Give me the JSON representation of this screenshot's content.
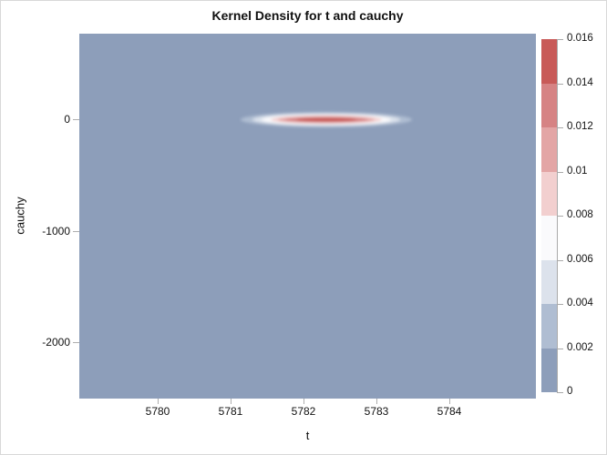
{
  "title": "Kernel Density for t and cauchy",
  "x_axis": {
    "label": "t",
    "tick_labels": [
      "5780",
      "5781",
      "5782",
      "5783",
      "5784"
    ]
  },
  "y_axis": {
    "label": "cauchy",
    "tick_labels": [
      "0",
      "-1000",
      "-2000"
    ]
  },
  "legend": {
    "tick_labels_top_to_bottom": [
      "0.016",
      "0.014",
      "0.012",
      "0.01",
      "0.008",
      "0.006",
      "0.004",
      "0.002",
      "0"
    ],
    "band_colors_low_to_high": [
      "#8d9eba",
      "#afbdd2",
      "#dce2ec",
      "#fafafc",
      "#f2cfcf",
      "#e3a5a5",
      "#d68384",
      "#c85a58"
    ]
  },
  "colors": {
    "plot_background_density_zero": "#8d9eba",
    "peak_red": "#c85a58",
    "figure_border": "#d8d8d8",
    "tick_gray": "#aeaeae"
  },
  "chart_data": {
    "type": "heatmap",
    "subtype": "bivariate-kernel-density",
    "title": "Kernel Density for t and cauchy",
    "xlabel": "t",
    "ylabel": "cauchy",
    "x_ticks": [
      5780,
      5781,
      5782,
      5783,
      5784
    ],
    "y_ticks": [
      0,
      -1000,
      -2000
    ],
    "xlim": [
      5779,
      5785.2
    ],
    "ylim": [
      -2500,
      770
    ],
    "grid": false,
    "legend_position": "right",
    "colorbar": {
      "range": [
        0,
        0.016
      ],
      "tick_values": [
        0,
        0.002,
        0.004,
        0.006,
        0.008,
        0.01,
        0.012,
        0.014,
        0.016
      ],
      "band_colors_low_to_high": [
        "#8d9eba",
        "#afbdd2",
        "#dce2ec",
        "#fafafc",
        "#f2cfcf",
        "#e3a5a5",
        "#d68384",
        "#c85a58"
      ]
    },
    "density_field": {
      "background_density": 0,
      "peak": {
        "t": 5782.3,
        "cauchy": 0,
        "density": 0.016
      },
      "hotspot_extent": {
        "t": [
          5781.2,
          5783.5
        ],
        "cauchy": [
          -70,
          70
        ]
      },
      "shape": "single narrow horizontal elliptical peak centered near t=5782.3, cauchy=0; density everywhere else ~0"
    }
  }
}
